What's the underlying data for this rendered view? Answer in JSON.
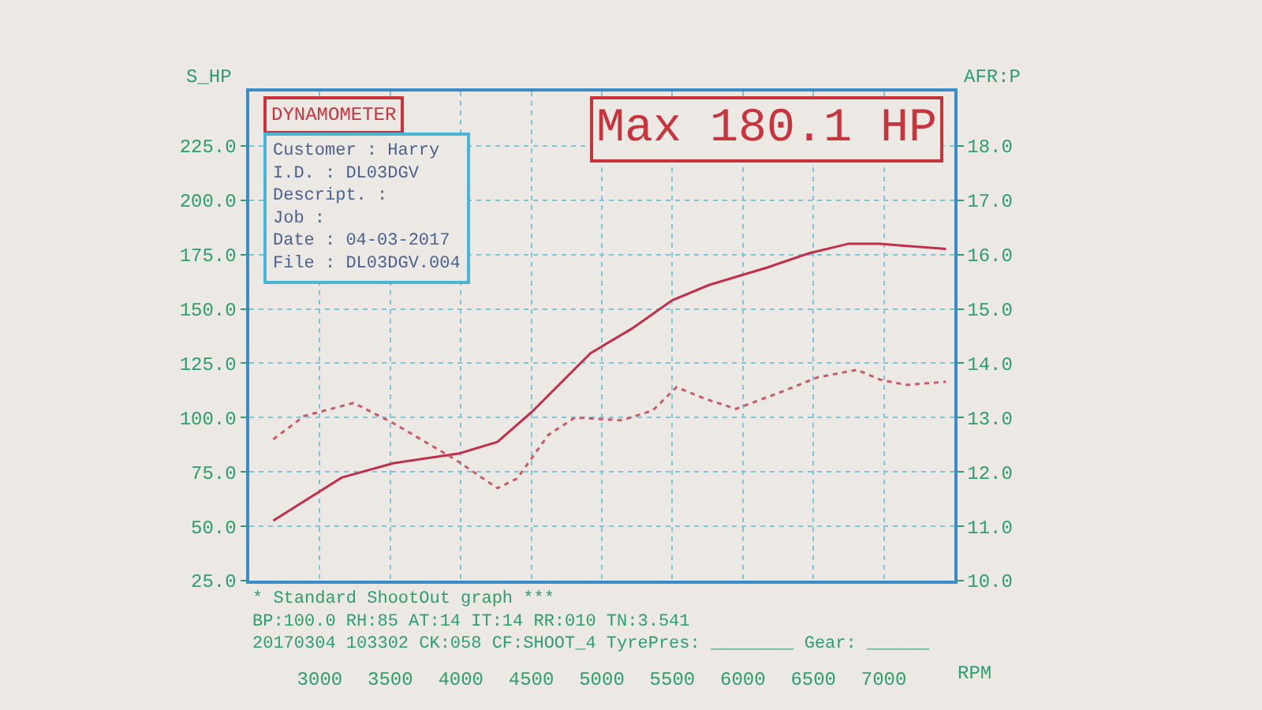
{
  "chart_data": {
    "type": "line",
    "xlabel": "RPM",
    "ylabel": "S_HP",
    "y2label": "AFR:P",
    "xlim": [
      2500,
      7500
    ],
    "xticks": [
      3000,
      3500,
      4000,
      4500,
      5000,
      5500,
      6000,
      6500,
      7000
    ],
    "ylim": [
      25,
      250
    ],
    "yticks": [
      {
        "value": 25,
        "label": "25.0"
      },
      {
        "value": 50,
        "label": "50.0"
      },
      {
        "value": 75,
        "label": "75.0"
      },
      {
        "value": 100,
        "label": "100.0"
      },
      {
        "value": 125,
        "label": "125.0"
      },
      {
        "value": 150,
        "label": "150.0"
      },
      {
        "value": 175,
        "label": "175.0"
      },
      {
        "value": 200,
        "label": "200.0"
      },
      {
        "value": 225,
        "label": "225.0"
      }
    ],
    "y2lim": [
      10,
      19
    ],
    "y2ticks": [
      {
        "value": 10,
        "label": "10.0"
      },
      {
        "value": 11,
        "label": "11.0"
      },
      {
        "value": 12,
        "label": "12.0"
      },
      {
        "value": 13,
        "label": "13.0"
      },
      {
        "value": 14,
        "label": "14.0"
      },
      {
        "value": 15,
        "label": "15.0"
      },
      {
        "value": 16,
        "label": "16.0"
      },
      {
        "value": 17,
        "label": "17.0"
      },
      {
        "value": 18,
        "label": "18.0"
      }
    ],
    "grid": true,
    "marker": "none",
    "series": [
      {
        "color": "#c0304a",
        "line_style": "solid",
        "x": [
          2670,
          3155,
          3520,
          3990,
          4260,
          4510,
          4920,
          5210,
          5500,
          5760,
          6170,
          6470,
          6750,
          6970,
          7160,
          7440
        ],
        "values": [
          52.6,
          72.4,
          79,
          83.5,
          88.8,
          103,
          129.6,
          140.8,
          154,
          161,
          169,
          175.6,
          180,
          180,
          179,
          177.6
        ]
      },
      {
        "color": "#c85a6a",
        "line_style": "dotted",
        "axis": "y2",
        "x": [
          2670,
          2890,
          3240,
          3520,
          3960,
          4260,
          4400,
          4620,
          4810,
          5140,
          5360,
          5530,
          5730,
          5950,
          6280,
          6530,
          6810,
          6970,
          7160,
          7440
        ],
        "values": [
          12.6,
          13.03,
          13.27,
          12.9,
          12.23,
          11.7,
          11.88,
          12.68,
          13.0,
          12.95,
          13.13,
          13.56,
          13.35,
          13.16,
          13.48,
          13.74,
          13.88,
          13.7,
          13.6,
          13.66
        ]
      }
    ],
    "annotations": [
      "DYNAMOMETER",
      "Max 180.1 HP",
      "Customer : Harry\nI.D. : DL03DGV\nDescript. :\nJob :\nDate : 04-03-2017\nFile : DL03DGV.004",
      "* Standard ShootOut graph ***\nBP:100.0 RH:85 AT:14 IT:14 RR:010 TN:3.541\n20170304 103302 CK:058 CF:SHOOT_4 TyrePres: ________ Gear: ______"
    ]
  }
}
